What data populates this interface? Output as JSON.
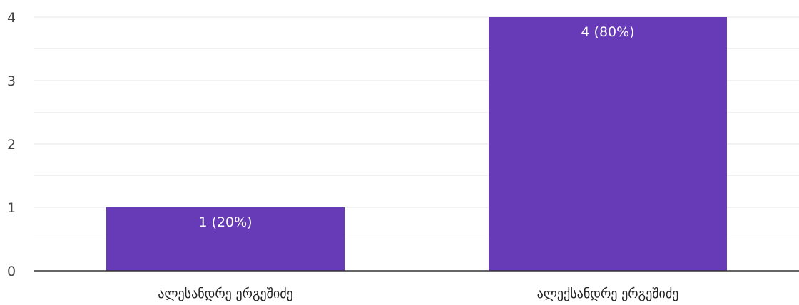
{
  "chart_data": {
    "type": "bar",
    "categories": [
      "ალესანდრე ერგეშიძე",
      "ალექსანდრე ერგეშიძე"
    ],
    "values": [
      1,
      4
    ],
    "value_labels": [
      "1 (20%)",
      "4 (80%)"
    ],
    "ylim": [
      0,
      4
    ],
    "yticks": [
      "0",
      "1",
      "2",
      "3",
      "4"
    ],
    "grid": true,
    "legend": "none",
    "colors": {
      "bar": "#673ab7",
      "grid_major": "#e5e5e5",
      "grid_minor": "#f1f1f1",
      "axis": "#333333",
      "tick_text": "#444444",
      "category_text": "#222222",
      "value_label_text": "#ffffff"
    }
  }
}
